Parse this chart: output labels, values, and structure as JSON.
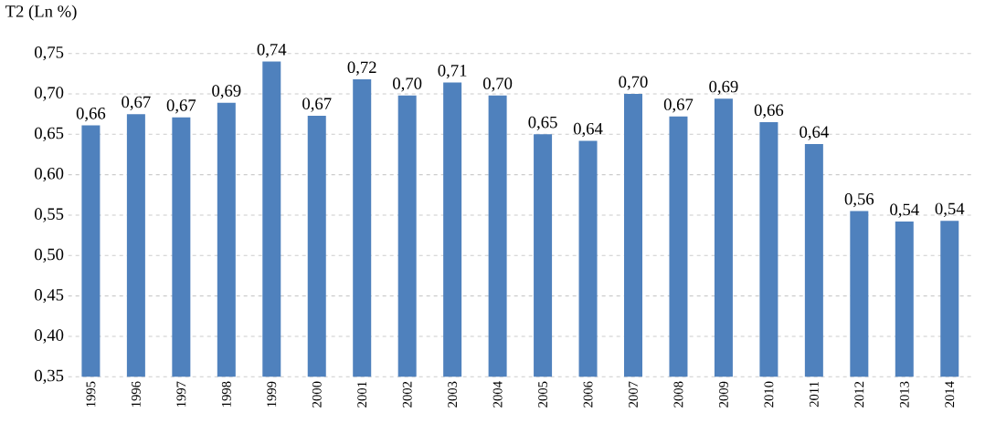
{
  "chart_data": {
    "type": "bar",
    "ylabel": "T2 (Ln %)",
    "categories": [
      "1995",
      "1996",
      "1997",
      "1998",
      "1999",
      "2000",
      "2001",
      "2002",
      "2003",
      "2004",
      "2005",
      "2006",
      "2007",
      "2008",
      "2009",
      "2010",
      "2011",
      "2012",
      "2013",
      "2014"
    ],
    "values": [
      0.661,
      0.675,
      0.671,
      0.689,
      0.74,
      0.673,
      0.718,
      0.698,
      0.714,
      0.698,
      0.65,
      0.642,
      0.7,
      0.672,
      0.694,
      0.665,
      0.638,
      0.555,
      0.542,
      0.543
    ],
    "value_labels": [
      "0,66",
      "0,67",
      "0,67",
      "0,69",
      "0,74",
      "0,67",
      "0,72",
      "0,70",
      "0,71",
      "0,70",
      "0,65",
      "0,64",
      "0,70",
      "0,67",
      "0,69",
      "0,66",
      "0,64",
      "0,56",
      "0,54",
      "0,54"
    ],
    "color": "#4f81bd",
    "ylim": [
      0.35,
      0.75
    ],
    "yticks": [
      {
        "value": 0.35,
        "label": "0,35"
      },
      {
        "value": 0.4,
        "label": "0,40"
      },
      {
        "value": 0.45,
        "label": "0,45"
      },
      {
        "value": 0.5,
        "label": "0,50"
      },
      {
        "value": 0.55,
        "label": "0,55"
      },
      {
        "value": 0.6,
        "label": "0,60"
      },
      {
        "value": 0.65,
        "label": "0,65"
      },
      {
        "value": 0.7,
        "label": "0,70"
      },
      {
        "value": 0.75,
        "label": "0,75"
      }
    ],
    "grid": "y"
  }
}
